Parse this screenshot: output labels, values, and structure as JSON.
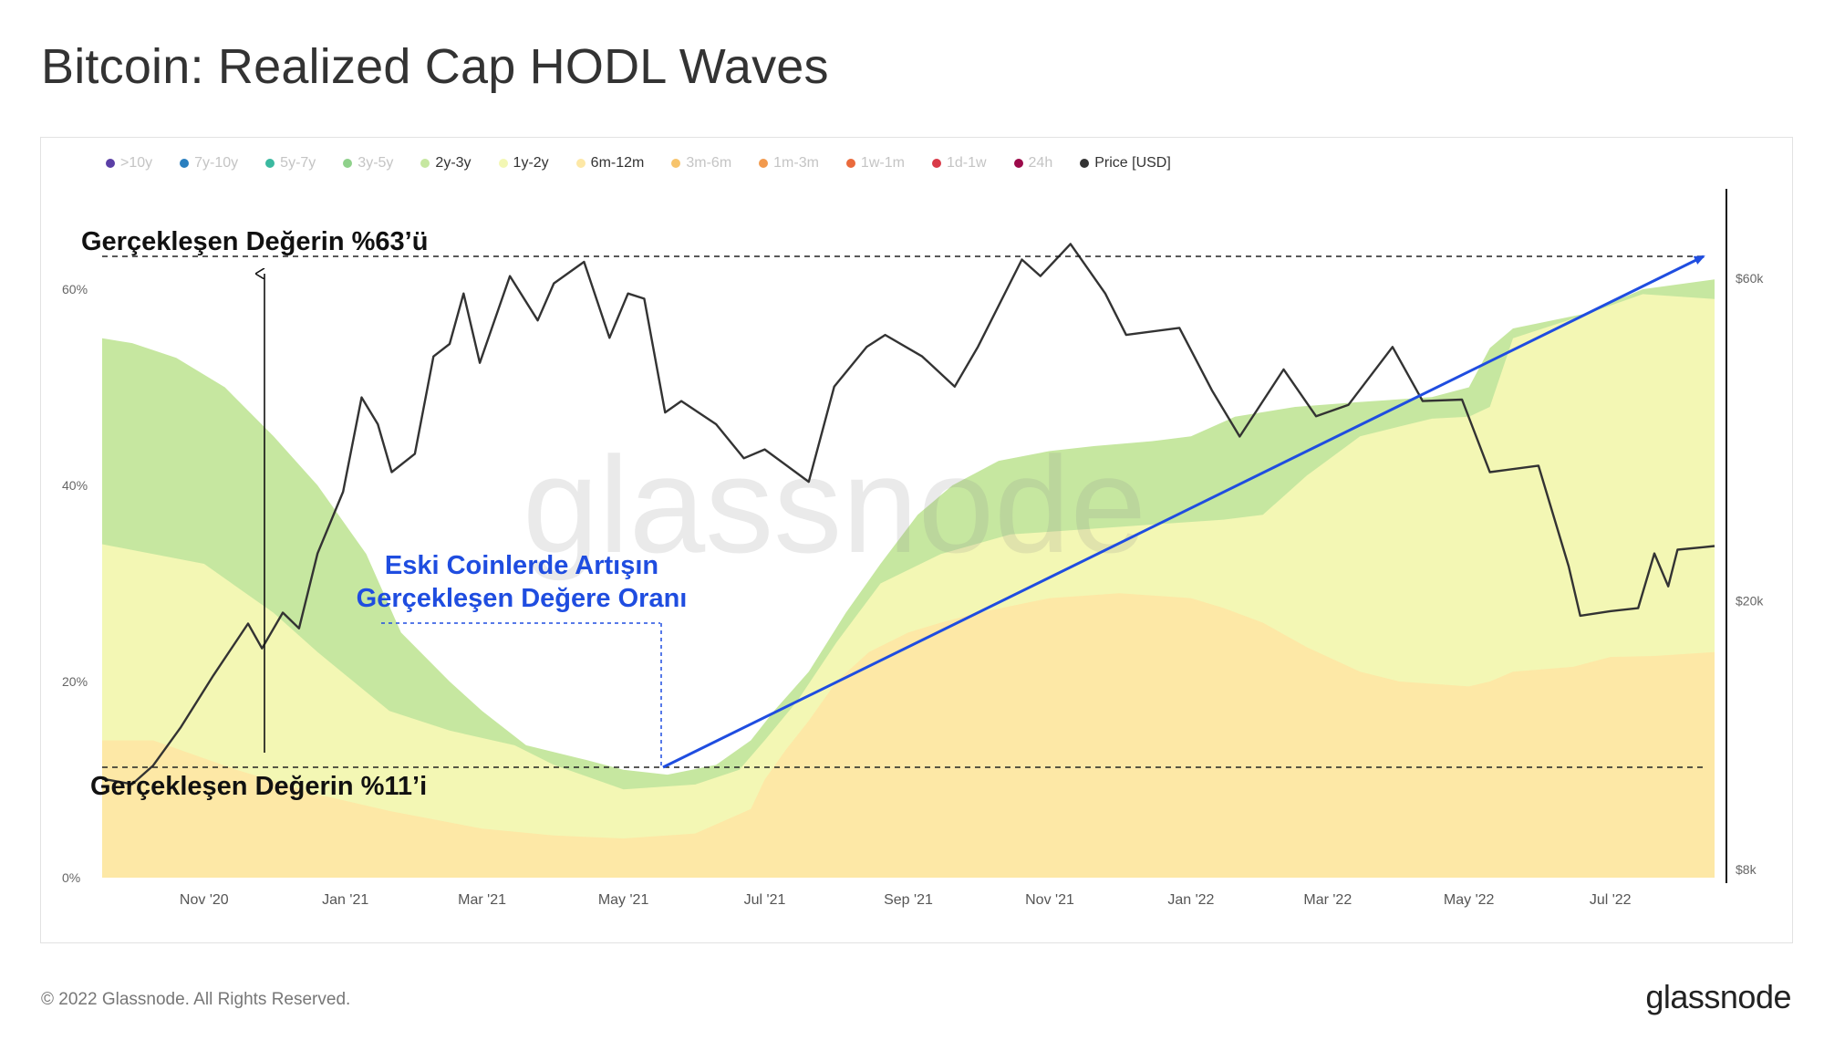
{
  "title": "Bitcoin: Realized Cap HODL Waves",
  "footer": {
    "copyright": "© 2022 Glassnode. All Rights Reserved.",
    "logo": "glassnode"
  },
  "watermark": "glassnode",
  "legend": [
    {
      "label": ">10y",
      "color": "#5b3fa6",
      "active": false
    },
    {
      "label": "7y-10y",
      "color": "#2a7fbf",
      "active": false
    },
    {
      "label": "5y-7y",
      "color": "#3bb9a0",
      "active": false
    },
    {
      "label": "3y-5y",
      "color": "#8fd18b",
      "active": false
    },
    {
      "label": "2y-3y",
      "color": "#c6e7a0",
      "active": true
    },
    {
      "label": "1y-2y",
      "color": "#f3f7b4",
      "active": true
    },
    {
      "label": "6m-12m",
      "color": "#fde8a6",
      "active": true
    },
    {
      "label": "3m-6m",
      "color": "#f7c46c",
      "active": false
    },
    {
      "label": "1m-3m",
      "color": "#f29a4e",
      "active": false
    },
    {
      "label": "1w-1m",
      "color": "#ea6a3c",
      "active": false
    },
    {
      "label": "1d-1w",
      "color": "#d93a48",
      "active": false
    },
    {
      "label": "24h",
      "color": "#9c0a4a",
      "active": false
    },
    {
      "label": "Price [USD]",
      "color": "#333333",
      "active": true
    }
  ],
  "annotations": {
    "top_level_label": "Gerçekleşen Değerin %63’ü",
    "bottom_level_label": "Gerçekleşen Değerin %11’i",
    "growth_label_line1": "Eski Coinlerde Artışın",
    "growth_label_line2": "Gerçekleşen Değere Oranı"
  },
  "chart_data": {
    "type": "area",
    "x_ticks": [
      "Nov '20",
      "Jan '21",
      "Mar '21",
      "May '21",
      "Jul '21",
      "Sep '21",
      "Nov '21",
      "Jan '22",
      "Mar '22",
      "May '22",
      "Jul '22"
    ],
    "x_range": [
      "2020-09-18",
      "2022-08-15"
    ],
    "y_left": {
      "ticks": [
        "0%",
        "20%",
        "40%",
        "60%"
      ],
      "range": [
        0,
        61
      ]
    },
    "y_right": {
      "scale": "log",
      "ticks": [
        "$8k",
        "$20k",
        "$60k"
      ],
      "range": [
        8000,
        68000
      ]
    },
    "grid": false,
    "legend_position": "top",
    "series": [
      {
        "name": "6m-12m",
        "color": "#fde8a6",
        "unit": "% cumulative top",
        "points": [
          [
            "2020-09-18",
            14
          ],
          [
            "2020-10-10",
            14
          ],
          [
            "2020-11-15",
            11
          ],
          [
            "2020-12-20",
            8.5
          ],
          [
            "2021-01-20",
            6.8
          ],
          [
            "2021-03-01",
            5
          ],
          [
            "2021-04-01",
            4.3
          ],
          [
            "2021-05-01",
            4
          ],
          [
            "2021-06-01",
            4.5
          ],
          [
            "2021-06-25",
            7
          ],
          [
            "2021-07-01",
            10
          ],
          [
            "2021-07-10",
            13
          ],
          [
            "2021-07-20",
            16
          ],
          [
            "2021-08-01",
            20
          ],
          [
            "2021-08-15",
            23
          ],
          [
            "2021-09-01",
            25
          ],
          [
            "2021-09-15",
            26
          ],
          [
            "2021-10-01",
            27
          ],
          [
            "2021-11-01",
            28.5
          ],
          [
            "2021-12-01",
            29
          ],
          [
            "2022-01-01",
            28.5
          ],
          [
            "2022-01-15",
            27.5
          ],
          [
            "2022-02-01",
            26
          ],
          [
            "2022-02-20",
            23.5
          ],
          [
            "2022-03-15",
            21
          ],
          [
            "2022-04-01",
            20
          ],
          [
            "2022-05-01",
            19.5
          ],
          [
            "2022-05-10",
            20
          ],
          [
            "2022-05-20",
            21
          ],
          [
            "2022-06-15",
            21.5
          ],
          [
            "2022-07-01",
            22.5
          ],
          [
            "2022-07-20",
            22.6
          ],
          [
            "2022-08-15",
            23
          ]
        ]
      },
      {
        "name": "1y-2y",
        "color": "#f3f7b4",
        "unit": "% cumulative top",
        "points": [
          [
            "2020-09-18",
            34
          ],
          [
            "2020-10-10",
            33
          ],
          [
            "2020-11-01",
            32
          ],
          [
            "2020-12-01",
            27
          ],
          [
            "2020-12-20",
            23
          ],
          [
            "2021-01-20",
            17
          ],
          [
            "2021-02-15",
            15
          ],
          [
            "2021-03-15",
            13.5
          ],
          [
            "2021-04-01",
            11.5
          ],
          [
            "2021-05-01",
            9
          ],
          [
            "2021-06-01",
            9.5
          ],
          [
            "2021-06-20",
            11
          ],
          [
            "2021-07-01",
            14
          ],
          [
            "2021-07-15",
            18
          ],
          [
            "2021-08-01",
            24
          ],
          [
            "2021-08-20",
            30
          ],
          [
            "2021-09-15",
            33
          ],
          [
            "2021-10-15",
            35
          ],
          [
            "2021-11-15",
            35.5
          ],
          [
            "2021-12-15",
            36
          ],
          [
            "2022-01-15",
            36.5
          ],
          [
            "2022-02-01",
            37
          ],
          [
            "2022-02-20",
            41
          ],
          [
            "2022-03-15",
            45
          ],
          [
            "2022-04-01",
            46
          ],
          [
            "2022-04-15",
            46.8
          ],
          [
            "2022-05-01",
            47
          ],
          [
            "2022-05-10",
            48
          ],
          [
            "2022-05-20",
            55
          ],
          [
            "2022-06-15",
            57
          ],
          [
            "2022-07-15",
            59.5
          ],
          [
            "2022-08-15",
            59
          ]
        ]
      },
      {
        "name": "2y-3y",
        "color": "#c6e7a0",
        "unit": "% cumulative top",
        "points": [
          [
            "2020-09-18",
            55
          ],
          [
            "2020-10-01",
            54.5
          ],
          [
            "2020-10-20",
            53
          ],
          [
            "2020-11-10",
            50
          ],
          [
            "2020-12-01",
            45
          ],
          [
            "2020-12-20",
            40
          ],
          [
            "2021-01-10",
            33
          ],
          [
            "2021-01-25",
            25
          ],
          [
            "2021-02-15",
            20
          ],
          [
            "2021-03-01",
            17
          ],
          [
            "2021-03-20",
            13.5
          ],
          [
            "2021-04-15",
            12
          ],
          [
            "2021-05-01",
            11
          ],
          [
            "2021-05-20",
            10.5
          ],
          [
            "2021-06-10",
            11.5
          ],
          [
            "2021-06-25",
            14
          ],
          [
            "2021-07-05",
            17
          ],
          [
            "2021-07-20",
            21
          ],
          [
            "2021-08-05",
            27
          ],
          [
            "2021-08-20",
            32
          ],
          [
            "2021-09-05",
            37
          ],
          [
            "2021-09-20",
            40
          ],
          [
            "2021-10-10",
            42.5
          ],
          [
            "2021-11-01",
            43.5
          ],
          [
            "2021-11-20",
            44
          ],
          [
            "2021-12-15",
            44.5
          ],
          [
            "2022-01-01",
            45
          ],
          [
            "2022-01-20",
            47
          ],
          [
            "2022-02-15",
            48
          ],
          [
            "2022-03-15",
            48.5
          ],
          [
            "2022-04-15",
            49
          ],
          [
            "2022-05-01",
            50
          ],
          [
            "2022-05-10",
            54
          ],
          [
            "2022-05-20",
            56
          ],
          [
            "2022-06-20",
            57.5
          ],
          [
            "2022-07-15",
            60
          ],
          [
            "2022-08-15",
            61
          ]
        ]
      },
      {
        "name": "Price [USD]",
        "color": "#333333",
        "axis": "right",
        "points": [
          [
            "2020-09-18",
            10900
          ],
          [
            "2020-10-01",
            10700
          ],
          [
            "2020-10-10",
            11400
          ],
          [
            "2020-10-22",
            13000
          ],
          [
            "2020-11-05",
            15500
          ],
          [
            "2020-11-20",
            18500
          ],
          [
            "2020-11-26",
            17000
          ],
          [
            "2020-12-05",
            19200
          ],
          [
            "2020-12-12",
            18200
          ],
          [
            "2020-12-20",
            23500
          ],
          [
            "2020-12-31",
            29000
          ],
          [
            "2021-01-08",
            40000
          ],
          [
            "2021-01-15",
            36500
          ],
          [
            "2021-01-21",
            31000
          ],
          [
            "2021-01-31",
            33000
          ],
          [
            "2021-02-08",
            46000
          ],
          [
            "2021-02-15",
            48000
          ],
          [
            "2021-02-21",
            57000
          ],
          [
            "2021-02-28",
            45000
          ],
          [
            "2021-03-13",
            60500
          ],
          [
            "2021-03-25",
            52000
          ],
          [
            "2021-04-01",
            59000
          ],
          [
            "2021-04-14",
            63500
          ],
          [
            "2021-04-25",
            49000
          ],
          [
            "2021-05-03",
            57000
          ],
          [
            "2021-05-10",
            56000
          ],
          [
            "2021-05-19",
            38000
          ],
          [
            "2021-05-26",
            39500
          ],
          [
            "2021-06-10",
            36500
          ],
          [
            "2021-06-22",
            32500
          ],
          [
            "2021-07-01",
            33500
          ],
          [
            "2021-07-20",
            30000
          ],
          [
            "2021-07-31",
            41500
          ],
          [
            "2021-08-14",
            47500
          ],
          [
            "2021-08-22",
            49500
          ],
          [
            "2021-09-07",
            46000
          ],
          [
            "2021-09-21",
            41500
          ],
          [
            "2021-10-01",
            47500
          ],
          [
            "2021-10-20",
            64000
          ],
          [
            "2021-10-28",
            60500
          ],
          [
            "2021-11-10",
            67500
          ],
          [
            "2021-11-25",
            57000
          ],
          [
            "2021-12-04",
            49500
          ],
          [
            "2021-12-27",
            50700
          ],
          [
            "2022-01-10",
            41000
          ],
          [
            "2022-01-22",
            35000
          ],
          [
            "2022-02-10",
            44000
          ],
          [
            "2022-02-24",
            37500
          ],
          [
            "2022-03-10",
            39000
          ],
          [
            "2022-03-29",
            47500
          ],
          [
            "2022-04-11",
            39500
          ],
          [
            "2022-04-28",
            39700
          ],
          [
            "2022-05-10",
            31000
          ],
          [
            "2022-05-31",
            31700
          ],
          [
            "2022-06-13",
            22500
          ],
          [
            "2022-06-18",
            19000
          ],
          [
            "2022-07-01",
            19300
          ],
          [
            "2022-07-13",
            19500
          ],
          [
            "2022-07-20",
            23500
          ],
          [
            "2022-07-26",
            21000
          ],
          [
            "2022-07-30",
            23800
          ],
          [
            "2022-08-10",
            24000
          ],
          [
            "2022-08-15",
            24100
          ]
        ]
      }
    ]
  }
}
